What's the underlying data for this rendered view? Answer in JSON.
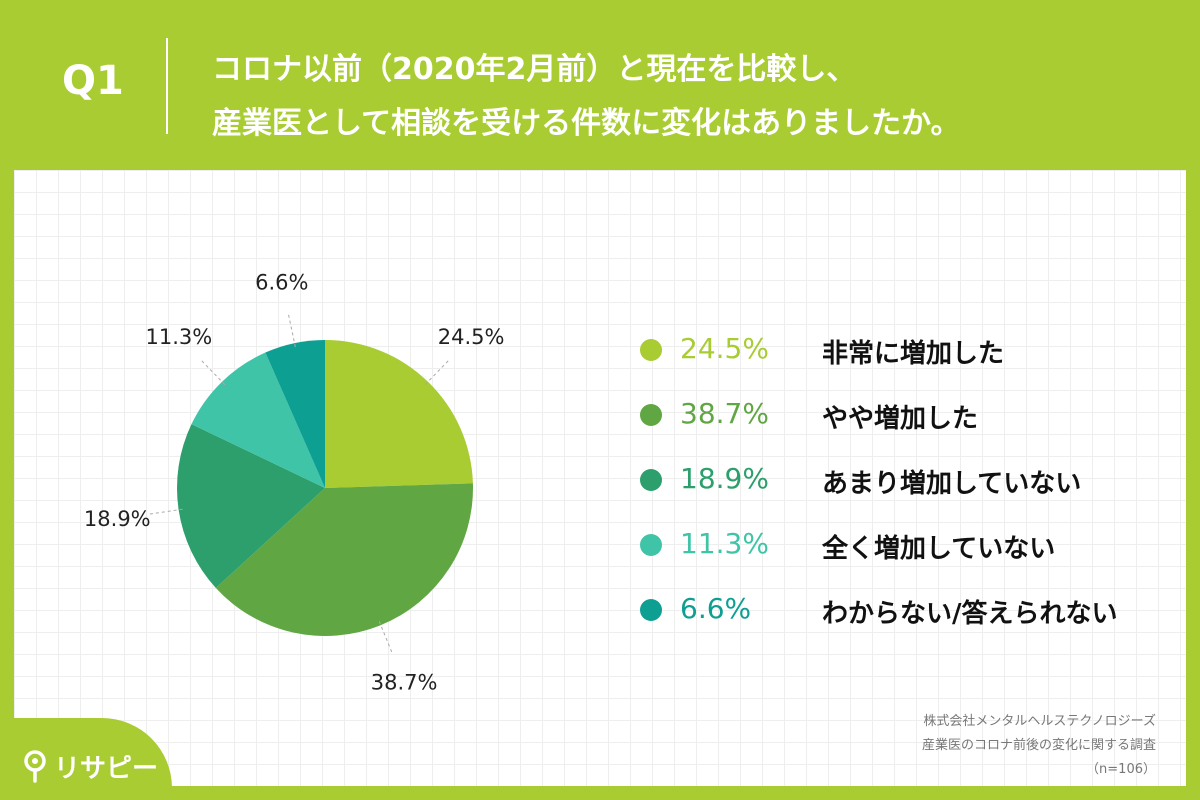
{
  "header": {
    "q_label": "Q1",
    "title_line1": "コロナ以前（2020年2月前）と現在を比較し、",
    "title_line2": "産業医として相談を受ける件数に変化はありましたか。"
  },
  "chart_data": {
    "type": "pie",
    "title": "",
    "slices": [
      {
        "label": "非常に増加した",
        "value": 24.5,
        "value_label": "24.5%",
        "color": "#a8cc32"
      },
      {
        "label": "やや増加した",
        "value": 38.7,
        "value_label": "38.7%",
        "color": "#60a744"
      },
      {
        "label": "あまり増加していない",
        "value": 18.9,
        "value_label": "18.9%",
        "color": "#2c9f6c"
      },
      {
        "label": "全く増加していない",
        "value": 11.3,
        "value_label": "11.3%",
        "color": "#40c4a8"
      },
      {
        "label": "わからない/答えられない",
        "value": 6.6,
        "value_label": "6.6%",
        "color": "#0e9f93"
      }
    ],
    "legend_position": "right"
  },
  "source": {
    "line1": "株式会社メンタルヘルステクノロジーズ",
    "line2": "産業医のコロナ前後の変化に関する調査",
    "line3": "（n=106）"
  },
  "brand": {
    "name": "リサピー",
    "icon": "pin-icon"
  }
}
